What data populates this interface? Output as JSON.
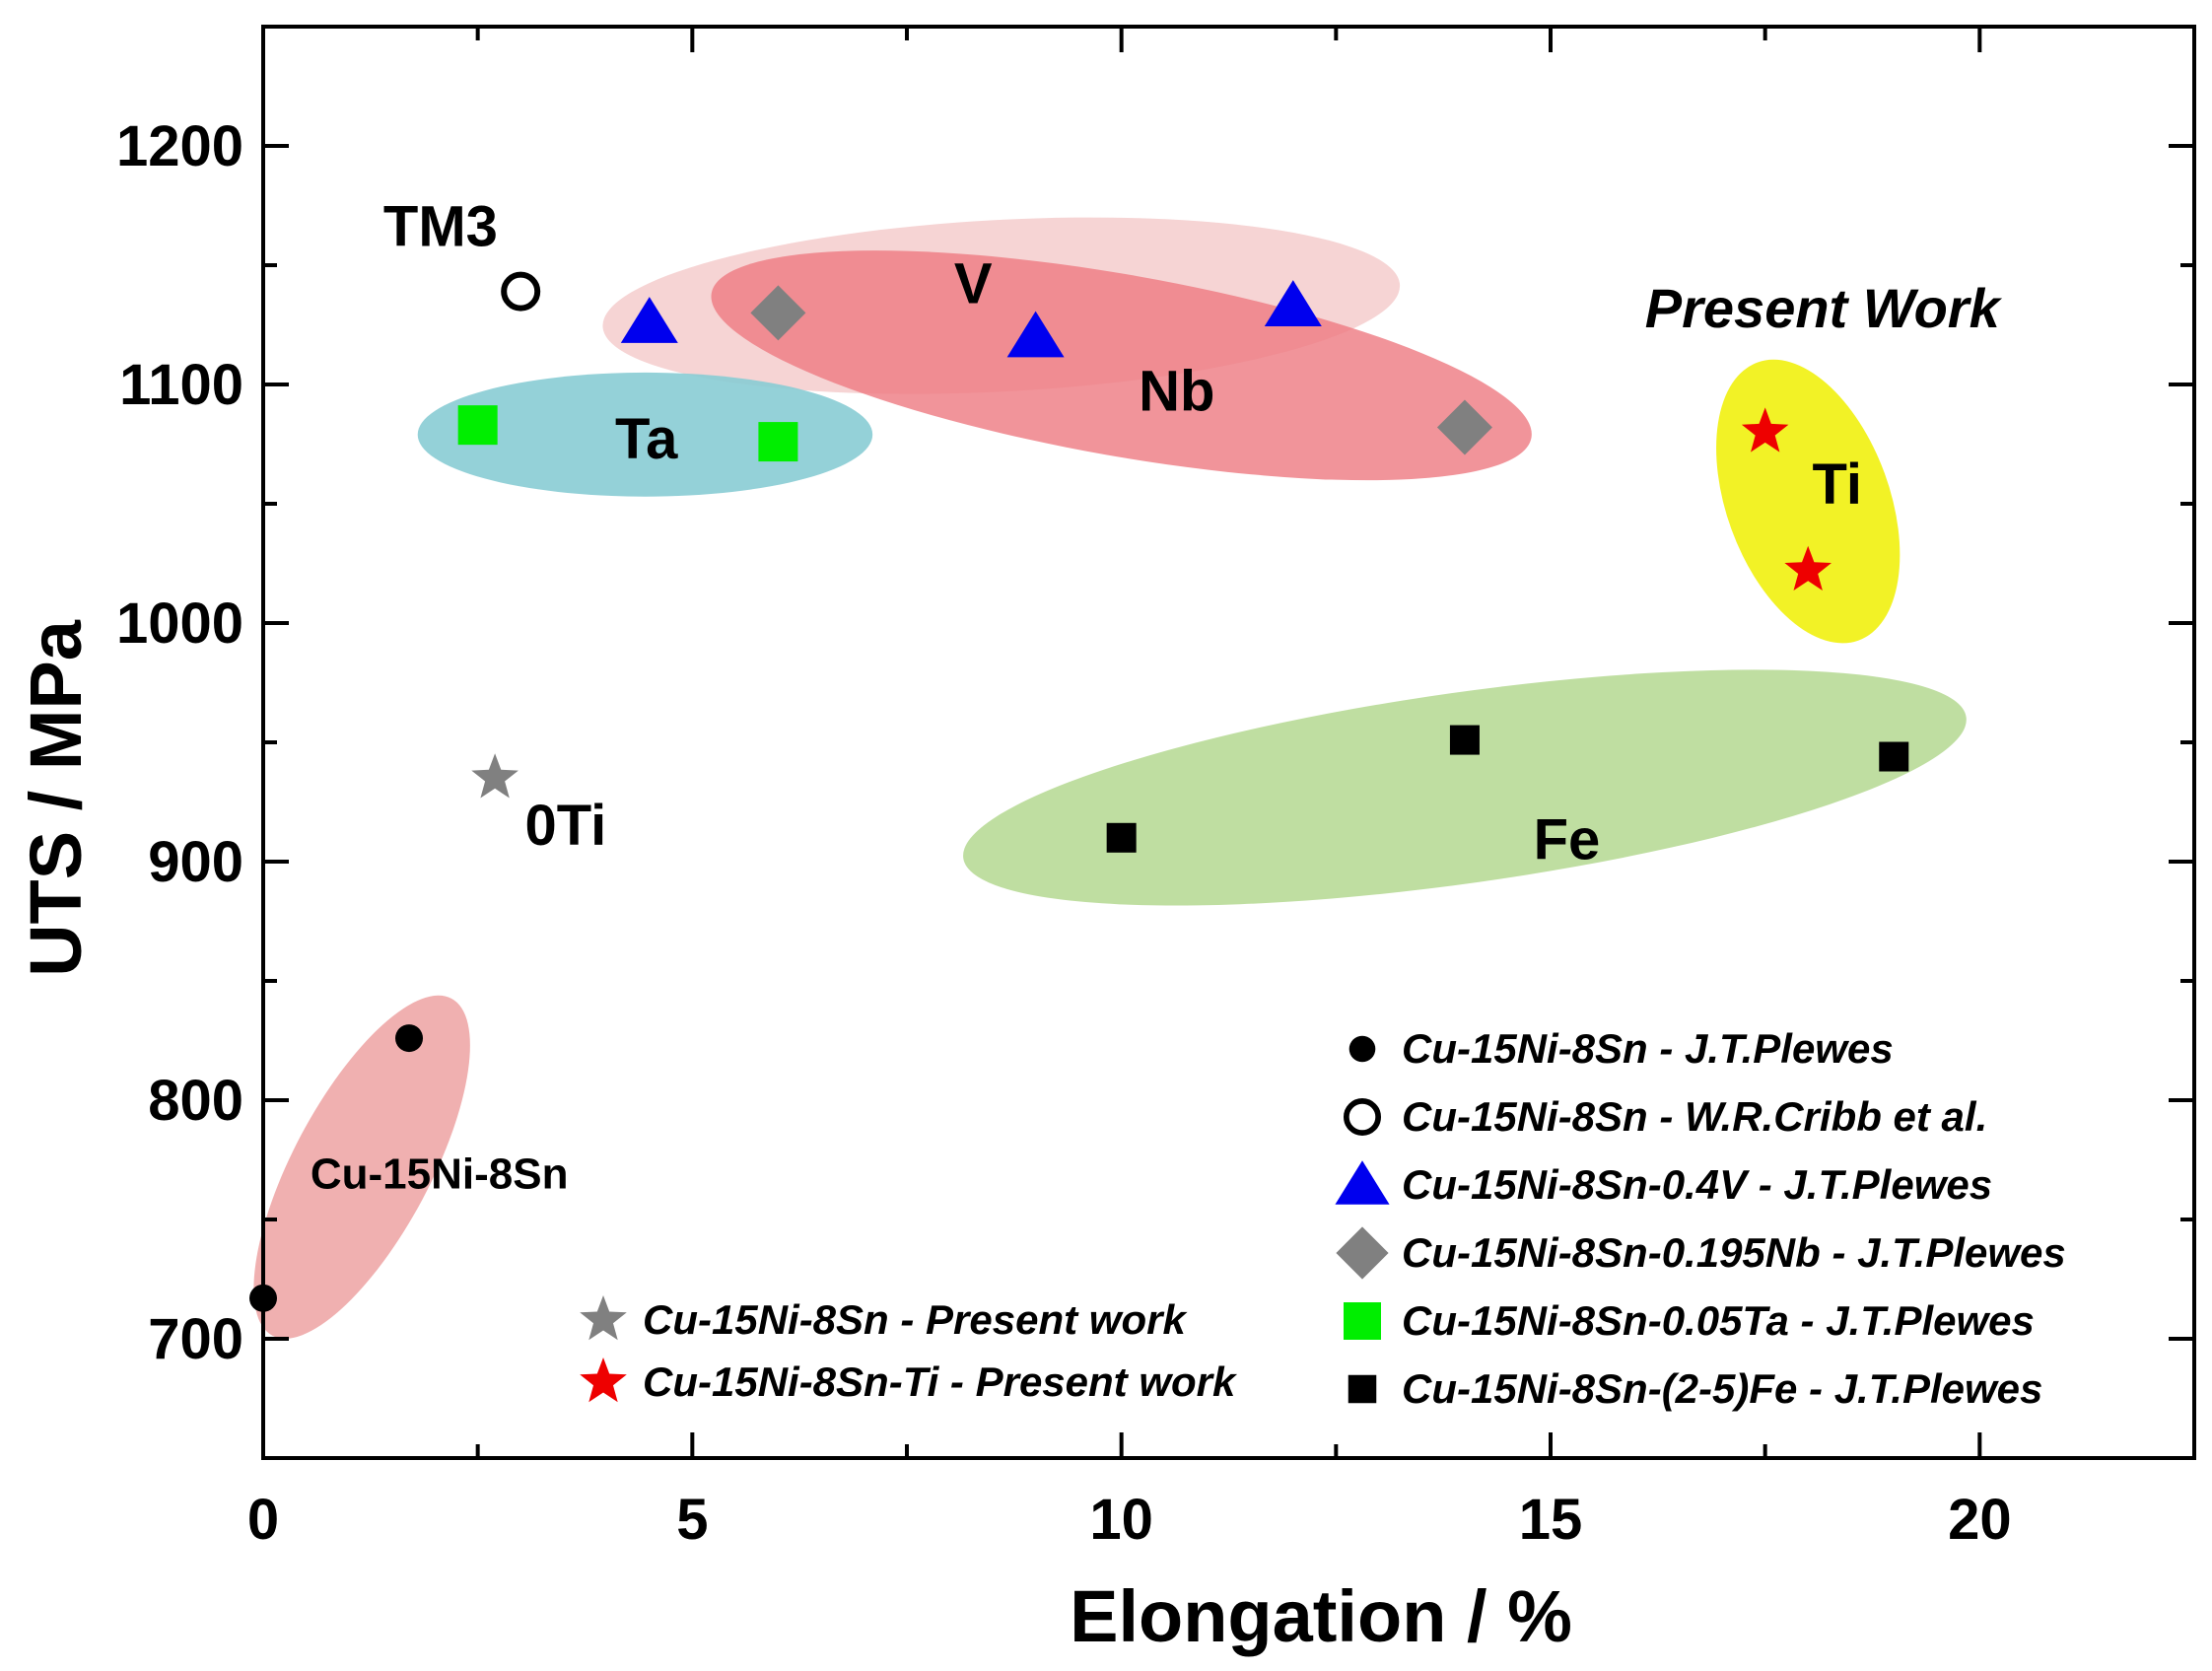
{
  "chart_data": {
    "type": "scatter",
    "xlabel": "Elongation / %",
    "ylabel": "UTS / MPa",
    "xlim": [
      0,
      22.5
    ],
    "ylim": [
      650,
      1250
    ],
    "x_major_ticks": [
      0,
      5,
      10,
      15,
      20
    ],
    "x_minor_ticks": [
      2.5,
      7.5,
      12.5,
      17.5,
      22.5
    ],
    "y_major_ticks": [
      700,
      800,
      900,
      1000,
      1100,
      1200
    ],
    "y_minor_ticks": [
      650,
      750,
      850,
      950,
      1050,
      1150,
      1250
    ],
    "colors": {
      "black": "#000000",
      "blue": "#0000ee",
      "gray": "#808080",
      "green": "#00ee00",
      "red": "#ee0000",
      "ellipse_pink_light": "#f0b8b8",
      "ellipse_red": "#ee7c84",
      "ellipse_cyan": "#88ccd4",
      "ellipse_yellow": "#f0f000",
      "ellipse_green": "#b4d890",
      "ellipse_salmon": "#ec9c9c"
    },
    "series": [
      {
        "name": "Cu-15Ni-8Sn - J.T.Plewes",
        "marker": "filled-circle",
        "color": "#000000",
        "points": [
          {
            "x": 0,
            "y": 717
          },
          {
            "x": 1.7,
            "y": 826
          }
        ]
      },
      {
        "name": "Cu-15Ni-8Sn - W.R.Cribb et al.",
        "marker": "open-circle",
        "color": "#000000",
        "points": [
          {
            "x": 3.0,
            "y": 1139
          }
        ]
      },
      {
        "name": "Cu-15Ni-8Sn-0.4V - J.T.Plewes",
        "marker": "triangle",
        "color": "#0000ee",
        "points": [
          {
            "x": 4.5,
            "y": 1126
          },
          {
            "x": 9.0,
            "y": 1120
          },
          {
            "x": 12.0,
            "y": 1133
          }
        ]
      },
      {
        "name": "Cu-15Ni-8Sn-0.195Nb - J.T.Plewes",
        "marker": "diamond",
        "color": "#808080",
        "points": [
          {
            "x": 6.0,
            "y": 1130
          },
          {
            "x": 14.0,
            "y": 1082
          }
        ]
      },
      {
        "name": "Cu-15Ni-8Sn-0.05Ta - J.T.Plewes",
        "marker": "square",
        "color": "#00ee00",
        "points": [
          {
            "x": 2.5,
            "y": 1083
          },
          {
            "x": 6.0,
            "y": 1076
          }
        ]
      },
      {
        "name": "Cu-15Ni-8Sn-(2-5)Fe - J.T.Plewes",
        "marker": "small-square",
        "color": "#000000",
        "points": [
          {
            "x": 10.0,
            "y": 910
          },
          {
            "x": 14.0,
            "y": 951
          },
          {
            "x": 19.0,
            "y": 944
          }
        ]
      },
      {
        "name": "Cu-15Ni-8Sn - Present work",
        "marker": "star",
        "color": "#808080",
        "points": [
          {
            "x": 2.7,
            "y": 935
          }
        ]
      },
      {
        "name": "Cu-15Ni-8Sn-Ti - Present work",
        "marker": "star",
        "color": "#ee0000",
        "points": [
          {
            "x": 17.5,
            "y": 1080
          },
          {
            "x": 18.0,
            "y": 1022
          }
        ]
      }
    ],
    "regions": [
      {
        "label": "V",
        "color": "ellipse_pink_light",
        "opacity": 0.6,
        "center": {
          "x": 8.6,
          "y": 1133
        },
        "rx_units": 4.65,
        "ry_units": 36,
        "angle_deg": -3
      },
      {
        "label": "Nb",
        "color": "ellipse_red",
        "opacity": 0.82,
        "center": {
          "x": 10.0,
          "y": 1108
        },
        "rx_units": 4.85,
        "ry_units": 38,
        "angle_deg": 10
      },
      {
        "label": "Ta",
        "color": "ellipse_cyan",
        "opacity": 0.9,
        "center": {
          "x": 4.45,
          "y": 1079
        },
        "rx_units": 2.65,
        "ry_units": 26,
        "angle_deg": 0
      },
      {
        "label": "Ti",
        "color": "ellipse_yellow",
        "opacity": 0.85,
        "center": {
          "x": 18.0,
          "y": 1051
        },
        "rx_units": 0.95,
        "ry_units": 62,
        "angle_deg": -20
      },
      {
        "label": "Fe",
        "color": "ellipse_green",
        "opacity": 0.85,
        "center": {
          "x": 14.0,
          "y": 931
        },
        "rx_units": 5.9,
        "ry_units": 40,
        "angle_deg": -8
      },
      {
        "label": "Cu-15Ni-8Sn",
        "color": "ellipse_salmon",
        "opacity": 0.8,
        "center": {
          "x": 1.15,
          "y": 772
        },
        "rx_units": 0.8,
        "ry_units": 80,
        "angle_deg": 28
      }
    ],
    "annotations": [
      {
        "text": "TM3",
        "x": 1.4,
        "y": 1158,
        "italic": false
      },
      {
        "text": "V",
        "x": 8.05,
        "y": 1134,
        "italic": false
      },
      {
        "text": "Nb",
        "x": 10.2,
        "y": 1089,
        "italic": false
      },
      {
        "text": "Ta",
        "x": 4.1,
        "y": 1069,
        "italic": false
      },
      {
        "text": "Ti",
        "x": 18.05,
        "y": 1050,
        "italic": false
      },
      {
        "text": "Fe",
        "x": 14.8,
        "y": 901,
        "italic": false
      },
      {
        "text": "0Ti",
        "x": 3.05,
        "y": 907,
        "italic": false
      },
      {
        "text": "Cu-15Ni-8Sn",
        "x": 0.55,
        "y": 763,
        "italic": false
      },
      {
        "text": "Present Work",
        "x": 16.1,
        "y": 1124,
        "italic": true
      }
    ],
    "legend": {
      "placement": "bottom-right",
      "right_column": [
        "Cu-15Ni-8Sn - J.T.Plewes",
        "Cu-15Ni-8Sn - W.R.Cribb et al.",
        "Cu-15Ni-8Sn-0.4V - J.T.Plewes",
        "Cu-15Ni-8Sn-0.195Nb - J.T.Plewes",
        "Cu-15Ni-8Sn-0.05Ta - J.T.Plewes",
        "Cu-15Ni-8Sn-(2-5)Fe - J.T.Plewes"
      ],
      "left_column": [
        "Cu-15Ni-8Sn - Present work",
        "Cu-15Ni-8Sn-Ti - Present work"
      ]
    }
  }
}
